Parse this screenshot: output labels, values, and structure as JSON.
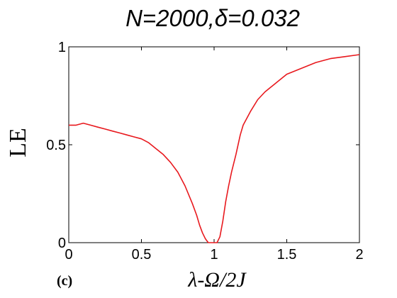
{
  "chart_data": {
    "type": "line",
    "title": "N=2000,δ=0.032",
    "xlabel": "λ-Ω/2J",
    "ylabel": "LE",
    "panel_label": "(c)",
    "xlim": [
      0,
      2
    ],
    "ylim": [
      0,
      1
    ],
    "xticks": [
      0,
      0.5,
      1,
      1.5,
      2
    ],
    "xtick_labels": [
      "0",
      "0.5",
      "1",
      "1.5",
      "2"
    ],
    "yticks": [
      0,
      0.5,
      1
    ],
    "ytick_labels": [
      "0",
      "0.5",
      "1"
    ],
    "grid": false,
    "series": [
      {
        "color": "#e8191e",
        "x": [
          0,
          0.05,
          0.1,
          0.15,
          0.2,
          0.25,
          0.3,
          0.35,
          0.4,
          0.45,
          0.5,
          0.55,
          0.6,
          0.65,
          0.7,
          0.75,
          0.8,
          0.85,
          0.88,
          0.9,
          0.92,
          0.94,
          0.96,
          0.98,
          1.0,
          1.02,
          1.04,
          1.06,
          1.08,
          1.1,
          1.12,
          1.15,
          1.18,
          1.2,
          1.25,
          1.3,
          1.35,
          1.4,
          1.45,
          1.5,
          1.6,
          1.7,
          1.8,
          1.9,
          2.0
        ],
        "y": [
          0.6,
          0.6,
          0.61,
          0.6,
          0.59,
          0.58,
          0.57,
          0.56,
          0.55,
          0.54,
          0.53,
          0.51,
          0.48,
          0.45,
          0.41,
          0.36,
          0.29,
          0.2,
          0.14,
          0.09,
          0.05,
          0.02,
          0.0,
          0.0,
          0.0,
          0.0,
          0.03,
          0.11,
          0.21,
          0.29,
          0.36,
          0.45,
          0.55,
          0.6,
          0.67,
          0.73,
          0.77,
          0.8,
          0.83,
          0.86,
          0.89,
          0.92,
          0.94,
          0.95,
          0.96
        ]
      }
    ]
  }
}
